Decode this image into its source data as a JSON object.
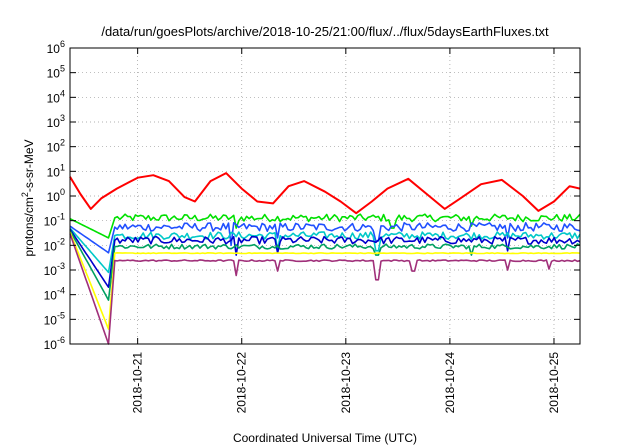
{
  "chart_data": {
    "type": "line",
    "title": "/data/run/goesPlots/archive/2018-10-25/21:00/flux/../flux/5daysEarthFluxes.txt",
    "xlabel": "Coordinated Universal Time (UTC)",
    "ylabel_main": "protons/cm",
    "ylabel_sup": "2",
    "ylabel_rest": "-s-sr-MeV",
    "yscale": "log",
    "ylim": [
      1e-06,
      1000000.0
    ],
    "y_ticks": [
      {
        "base": "10",
        "exp": "-6",
        "value": 1e-06
      },
      {
        "base": "10",
        "exp": "-5",
        "value": 1e-05
      },
      {
        "base": "10",
        "exp": "-4",
        "value": 0.0001
      },
      {
        "base": "10",
        "exp": "-3",
        "value": 0.001
      },
      {
        "base": "10",
        "exp": "-2",
        "value": 0.01
      },
      {
        "base": "10",
        "exp": "-1",
        "value": 0.1
      },
      {
        "base": "10",
        "exp": "0",
        "value": 1
      },
      {
        "base": "10",
        "exp": "1",
        "value": 10
      },
      {
        "base": "10",
        "exp": "2",
        "value": 100
      },
      {
        "base": "10",
        "exp": "3",
        "value": 1000
      },
      {
        "base": "10",
        "exp": "4",
        "value": 10000
      },
      {
        "base": "10",
        "exp": "5",
        "value": 100000
      },
      {
        "base": "10",
        "exp": "6",
        "value": 1000000
      }
    ],
    "x_ticks": [
      {
        "label": "2018-10-21",
        "day": 1.0
      },
      {
        "label": "2018-10-22",
        "day": 2.0
      },
      {
        "label": "2018-10-23",
        "day": 3.0
      },
      {
        "label": "2018-10-24",
        "day": 4.0
      },
      {
        "label": "2018-10-25",
        "day": 5.0
      }
    ],
    "xlim_days": [
      -0.65,
      4.25
    ],
    "grid": true,
    "series": [
      {
        "color": "#ff0000",
        "points": [
          [
            -0.65,
            6.0
          ],
          [
            -0.55,
            1.2
          ],
          [
            -0.45,
            0.3
          ],
          [
            -0.35,
            0.8
          ],
          [
            -0.2,
            2.0
          ],
          [
            0.0,
            5.5
          ],
          [
            0.15,
            7.0
          ],
          [
            0.3,
            4.0
          ],
          [
            0.45,
            0.9
          ],
          [
            0.55,
            0.6
          ],
          [
            0.7,
            4.0
          ],
          [
            0.85,
            8.5
          ],
          [
            1.0,
            2.0
          ],
          [
            1.15,
            0.6
          ],
          [
            1.3,
            0.5
          ],
          [
            1.45,
            2.5
          ],
          [
            1.6,
            4.0
          ],
          [
            1.8,
            1.5
          ],
          [
            1.95,
            0.6
          ],
          [
            2.1,
            0.2
          ],
          [
            2.25,
            0.6
          ],
          [
            2.4,
            2.0
          ],
          [
            2.6,
            5.0
          ],
          [
            2.8,
            1.0
          ],
          [
            2.95,
            0.3
          ],
          [
            3.1,
            0.8
          ],
          [
            3.3,
            3.0
          ],
          [
            3.5,
            4.5
          ],
          [
            3.7,
            1.0
          ],
          [
            3.85,
            0.25
          ],
          [
            4.0,
            0.6
          ],
          [
            4.15,
            2.5
          ],
          [
            4.25,
            2.0
          ]
        ]
      },
      {
        "color": "#00e000",
        "start": 0.12,
        "drop_to": 0.02,
        "level": 0.13,
        "noise": 0.3,
        "dips": [
          [
            0.95,
            0.05
          ],
          [
            2.45,
            0.05
          ],
          [
            3.2,
            0.06
          ]
        ]
      },
      {
        "color": "#2050ff",
        "start": 0.06,
        "drop_to": 0.005,
        "level": 0.055,
        "noise": 0.35,
        "dips": [
          [
            0.9,
            0.01
          ],
          [
            1.35,
            0.02
          ],
          [
            2.3,
            0.015
          ],
          [
            3.55,
            0.02
          ]
        ]
      },
      {
        "color": "#00c8c8",
        "start": 0.05,
        "drop_to": 0.0008,
        "level": 0.025,
        "noise": 0.3,
        "dips": [
          [
            1.35,
            0.006
          ],
          [
            2.3,
            0.006
          ]
        ]
      },
      {
        "color": "#0000cc",
        "start": 0.045,
        "drop_to": 0.0002,
        "level": 0.016,
        "noise": 0.3,
        "dips": [
          [
            0.95,
            0.004
          ],
          [
            1.35,
            0.005
          ],
          [
            3.55,
            0.006
          ]
        ]
      },
      {
        "color": "#00a060",
        "start": 0.04,
        "drop_to": 6e-05,
        "level": 0.009,
        "noise": 0.2,
        "dips": [
          [
            2.3,
            0.004
          ],
          [
            3.2,
            0.004
          ]
        ]
      },
      {
        "color": "#ffff00",
        "start": 0.035,
        "drop_to": 4e-06,
        "level": 0.0048,
        "noise": 0.03,
        "dips": []
      },
      {
        "color": "#a0307a",
        "start": 0.03,
        "drop_to": 1e-06,
        "level": 0.0024,
        "noise": 0.06,
        "dips": [
          [
            0.95,
            0.0006
          ],
          [
            1.35,
            0.0009
          ],
          [
            2.3,
            0.0004
          ],
          [
            2.65,
            0.0009
          ],
          [
            3.55,
            0.001
          ],
          [
            3.95,
            0.0011
          ]
        ]
      }
    ]
  }
}
